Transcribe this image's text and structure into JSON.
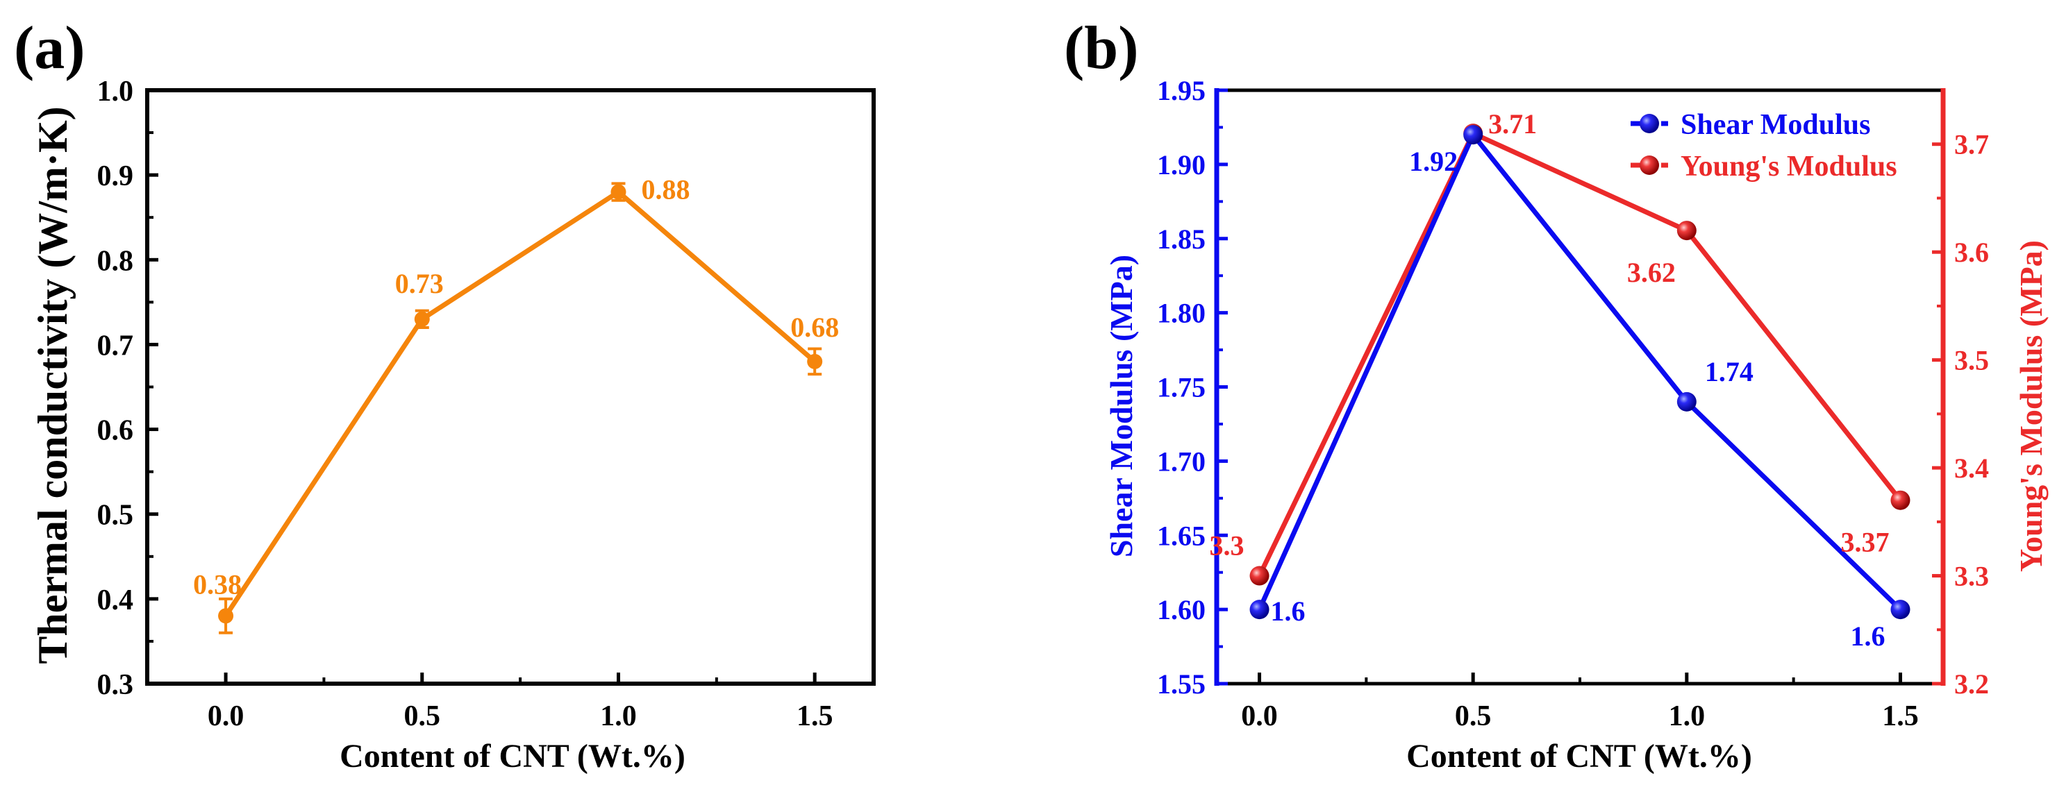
{
  "chart_data": [
    {
      "panel_label": "(a)",
      "type": "line",
      "xlabel": "Content of CNT (Wt.%)",
      "ylabel": "Thermal conductivity (W/m·K)",
      "xlim": [
        -0.2,
        1.65
      ],
      "ylim": [
        0.3,
        1.0
      ],
      "xticks": [
        "0.0",
        "0.5",
        "1.0",
        "1.5"
      ],
      "yticks": [
        "0.3",
        "0.4",
        "0.5",
        "0.6",
        "0.7",
        "0.8",
        "0.9",
        "1.0"
      ],
      "color": "#F5850B",
      "series": [
        {
          "name": "Thermal conductivity",
          "x": [
            0.0,
            0.5,
            1.0,
            1.5
          ],
          "values": [
            0.38,
            0.73,
            0.88,
            0.68
          ],
          "error": [
            0.02,
            0.01,
            0.01,
            0.015
          ],
          "labels": [
            "0.38",
            "0.73",
            "0.88",
            "0.68"
          ]
        }
      ]
    },
    {
      "panel_label": "(b)",
      "type": "line",
      "xlabel": "Content of CNT (Wt.%)",
      "ylabel_left": "Shear Modulus (MPa)",
      "ylabel_right": "Young's Modulus (MPa)",
      "xlim": [
        -0.1,
        1.6
      ],
      "ylim_left": [
        1.55,
        1.95
      ],
      "ylim_right": [
        3.2,
        3.75
      ],
      "xticks": [
        "0.0",
        "0.5",
        "1.0",
        "1.5"
      ],
      "yticks_left": [
        "1.55",
        "1.60",
        "1.65",
        "1.70",
        "1.75",
        "1.80",
        "1.85",
        "1.90",
        "1.95"
      ],
      "yticks_right": [
        "3.2",
        "3.3",
        "3.4",
        "3.5",
        "3.6",
        "3.7"
      ],
      "legend_position": "top-right",
      "series": [
        {
          "name": "Shear Modulus",
          "axis": "left",
          "color": "#0A0AF0",
          "x": [
            0.0,
            0.5,
            1.0,
            1.5
          ],
          "values": [
            1.6,
            1.92,
            1.74,
            1.6
          ],
          "labels": [
            "1.6",
            "1.92",
            "1.74",
            "1.6"
          ]
        },
        {
          "name": "Young's Modulus",
          "axis": "right",
          "color": "#EB2A2A",
          "x": [
            0.0,
            0.5,
            1.0,
            1.5
          ],
          "values": [
            3.3,
            3.71,
            3.62,
            3.37
          ],
          "labels": [
            "3.3",
            "3.71",
            "3.62",
            "3.37"
          ]
        }
      ]
    }
  ]
}
